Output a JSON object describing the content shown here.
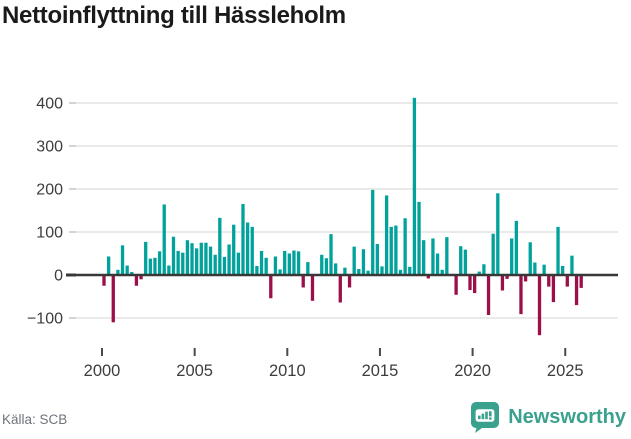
{
  "title": "Nettoinflyttning till Hässleholm",
  "source": "Källa: SCB",
  "branding": {
    "name": "Newsworthy",
    "color": "#3aa18f",
    "icon": "bar-chart-speech-bubble"
  },
  "colors": {
    "positive_bar": "#00a29b",
    "negative_bar": "#9b1048",
    "gridline": "#e3e3e3",
    "zero_axis": "#383838",
    "tick_label": "#3d3d3d",
    "title_text": "#1a1a1a",
    "source_text": "#6f737b"
  },
  "chart_data": {
    "type": "bar",
    "title": "Nettoinflyttning till Hässleholm",
    "xlabel": "",
    "ylabel": "",
    "grid": true,
    "legend": false,
    "ylim": [
      -160,
      430
    ],
    "yticks": [
      400,
      300,
      200,
      100,
      0,
      -100
    ],
    "ytick_labels": [
      "400",
      "300",
      "200",
      "100",
      "0",
      "−100"
    ],
    "xticks": [
      2000,
      2005,
      2010,
      2015,
      2020,
      2025
    ],
    "xtick_labels": [
      "2000",
      "2005",
      "2010",
      "2015",
      "2020",
      "2025"
    ],
    "x_unit": "quarter",
    "x": [
      "2000 Q1",
      "2000 Q2",
      "2000 Q3",
      "2000 Q4",
      "2001 Q1",
      "2001 Q2",
      "2001 Q3",
      "2001 Q4",
      "2002 Q1",
      "2002 Q2",
      "2002 Q3",
      "2002 Q4",
      "2003 Q1",
      "2003 Q2",
      "2003 Q3",
      "2003 Q4",
      "2004 Q1",
      "2004 Q2",
      "2004 Q3",
      "2004 Q4",
      "2005 Q1",
      "2005 Q2",
      "2005 Q3",
      "2005 Q4",
      "2006 Q1",
      "2006 Q2",
      "2006 Q3",
      "2006 Q4",
      "2007 Q1",
      "2007 Q2",
      "2007 Q3",
      "2007 Q4",
      "2008 Q1",
      "2008 Q2",
      "2008 Q3",
      "2008 Q4",
      "2009 Q1",
      "2009 Q2",
      "2009 Q3",
      "2009 Q4",
      "2010 Q1",
      "2010 Q2",
      "2010 Q3",
      "2010 Q4",
      "2011 Q1",
      "2011 Q2",
      "2011 Q3",
      "2011 Q4",
      "2012 Q1",
      "2012 Q2",
      "2012 Q3",
      "2012 Q4",
      "2013 Q1",
      "2013 Q2",
      "2013 Q3",
      "2013 Q4",
      "2014 Q1",
      "2014 Q2",
      "2014 Q3",
      "2014 Q4",
      "2015 Q1",
      "2015 Q2",
      "2015 Q3",
      "2015 Q4",
      "2016 Q1",
      "2016 Q2",
      "2016 Q3",
      "2016 Q4",
      "2017 Q1",
      "2017 Q2",
      "2017 Q3",
      "2017 Q4",
      "2018 Q1",
      "2018 Q2",
      "2018 Q3",
      "2018 Q4",
      "2019 Q1",
      "2019 Q2",
      "2019 Q3",
      "2019 Q4",
      "2020 Q1",
      "2020 Q2",
      "2020 Q3",
      "2020 Q4",
      "2021 Q1",
      "2021 Q2",
      "2021 Q3",
      "2021 Q4",
      "2022 Q1",
      "2022 Q2",
      "2022 Q3",
      "2022 Q4",
      "2023 Q1",
      "2023 Q2",
      "2023 Q3",
      "2023 Q4",
      "2024 Q1",
      "2024 Q2",
      "2024 Q3",
      "2024 Q4",
      "2025 Q1",
      "2025 Q2",
      "2025 Q3",
      "2025 Q4"
    ],
    "values": [
      -25,
      43,
      -110,
      12,
      69,
      22,
      7,
      -25,
      -10,
      77,
      38,
      40,
      55,
      164,
      22,
      89,
      56,
      52,
      81,
      74,
      62,
      75,
      75,
      66,
      47,
      133,
      42,
      71,
      117,
      52,
      165,
      122,
      112,
      21,
      56,
      40,
      -54,
      43,
      13,
      56,
      50,
      57,
      55,
      -29,
      30,
      -60,
      2,
      47,
      39,
      95,
      27,
      -64,
      17,
      -29,
      66,
      14,
      60,
      10,
      198,
      72,
      20,
      185,
      112,
      115,
      12,
      132,
      19,
      412,
      170,
      81,
      -8,
      85,
      50,
      12,
      88,
      2,
      -46,
      67,
      59,
      -35,
      -42,
      8,
      25,
      -93,
      96,
      190,
      -36,
      -9,
      85,
      126,
      -91,
      -15,
      76,
      29,
      -140,
      24,
      -27,
      -63,
      112,
      21,
      -27,
      45,
      -70,
      -30
    ]
  }
}
